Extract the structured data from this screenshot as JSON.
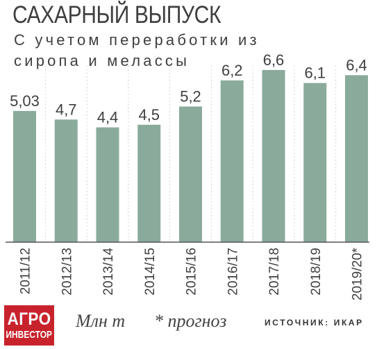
{
  "header": {
    "title": "САХАРНЫЙ ВЫПУСК",
    "subtitle": "С учетом переработки из сиропа и мелассы"
  },
  "footer": {
    "logo_line1": "АГРО",
    "logo_line2": "ИНВЕСТОР",
    "unit": "Млн т",
    "note": "* прогноз",
    "source": "ИСТОЧНИК: ИКАР"
  },
  "colors": {
    "bar": "#8aab9b",
    "grid": "#d4d4d4",
    "text": "#3f3f3f",
    "logo": "#c8232c"
  },
  "chart_data": {
    "type": "bar",
    "categories": [
      "2011/12",
      "2012/13",
      "2013/14",
      "2014/15",
      "2015/16",
      "2016/17",
      "2017/18",
      "2018/19",
      "2019/20*"
    ],
    "values": [
      5.03,
      4.7,
      4.4,
      4.5,
      5.2,
      6.2,
      6.6,
      6.1,
      6.4
    ],
    "value_labels": [
      "5,03",
      "4,7",
      "4,4",
      "4,5",
      "5,2",
      "6,2",
      "6,6",
      "6,1",
      "6,4"
    ],
    "ylim": [
      0,
      7
    ],
    "grid": true,
    "xlabel": "",
    "ylabel": ""
  }
}
